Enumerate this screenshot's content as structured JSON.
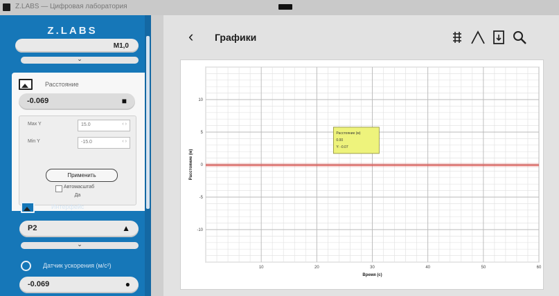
{
  "window": {
    "title": "Z.LABS — Цифровая лаборатория"
  },
  "sidebar": {
    "logo": "Z.LABS",
    "top_pill_value": "M1,0",
    "section_sensor": {
      "title": "Расстояние",
      "value": "-0.069",
      "limits": {
        "max_label": "Max Y",
        "max_value": "15.0",
        "min_label": "Min Y",
        "min_value": "-15.0",
        "apply_label": "Применить",
        "auto_label": "Автомасштаб",
        "auto_sub": "Да"
      }
    },
    "section_port": {
      "title": "Интерфейс",
      "value": "P2"
    },
    "section_channel": {
      "title": "Датчик ускорения (м/с²)",
      "value": "-0.069"
    }
  },
  "header": {
    "title": "Графики",
    "tools": [
      "grid-icon",
      "peak-icon",
      "export-icon",
      "zoom-icon"
    ]
  },
  "chart_data": {
    "type": "line",
    "xlabel": "Время (с)",
    "ylabel": "Расстояние (м)",
    "xlim": [
      0,
      60
    ],
    "ylim": [
      -15,
      15
    ],
    "x_ticks": [
      10,
      20,
      30,
      40,
      50,
      60
    ],
    "y_ticks": [
      -10,
      -5,
      0,
      5,
      10
    ],
    "grid": true,
    "series": [
      {
        "color": "#d9534f",
        "x": [
          0,
          60
        ],
        "y": [
          -0.07,
          -0.07
        ]
      }
    ],
    "annotation": {
      "lines": [
        "Расстояние (м)",
        "0.00",
        "Y: -0.07"
      ],
      "x": 23,
      "y": 1.5
    }
  }
}
